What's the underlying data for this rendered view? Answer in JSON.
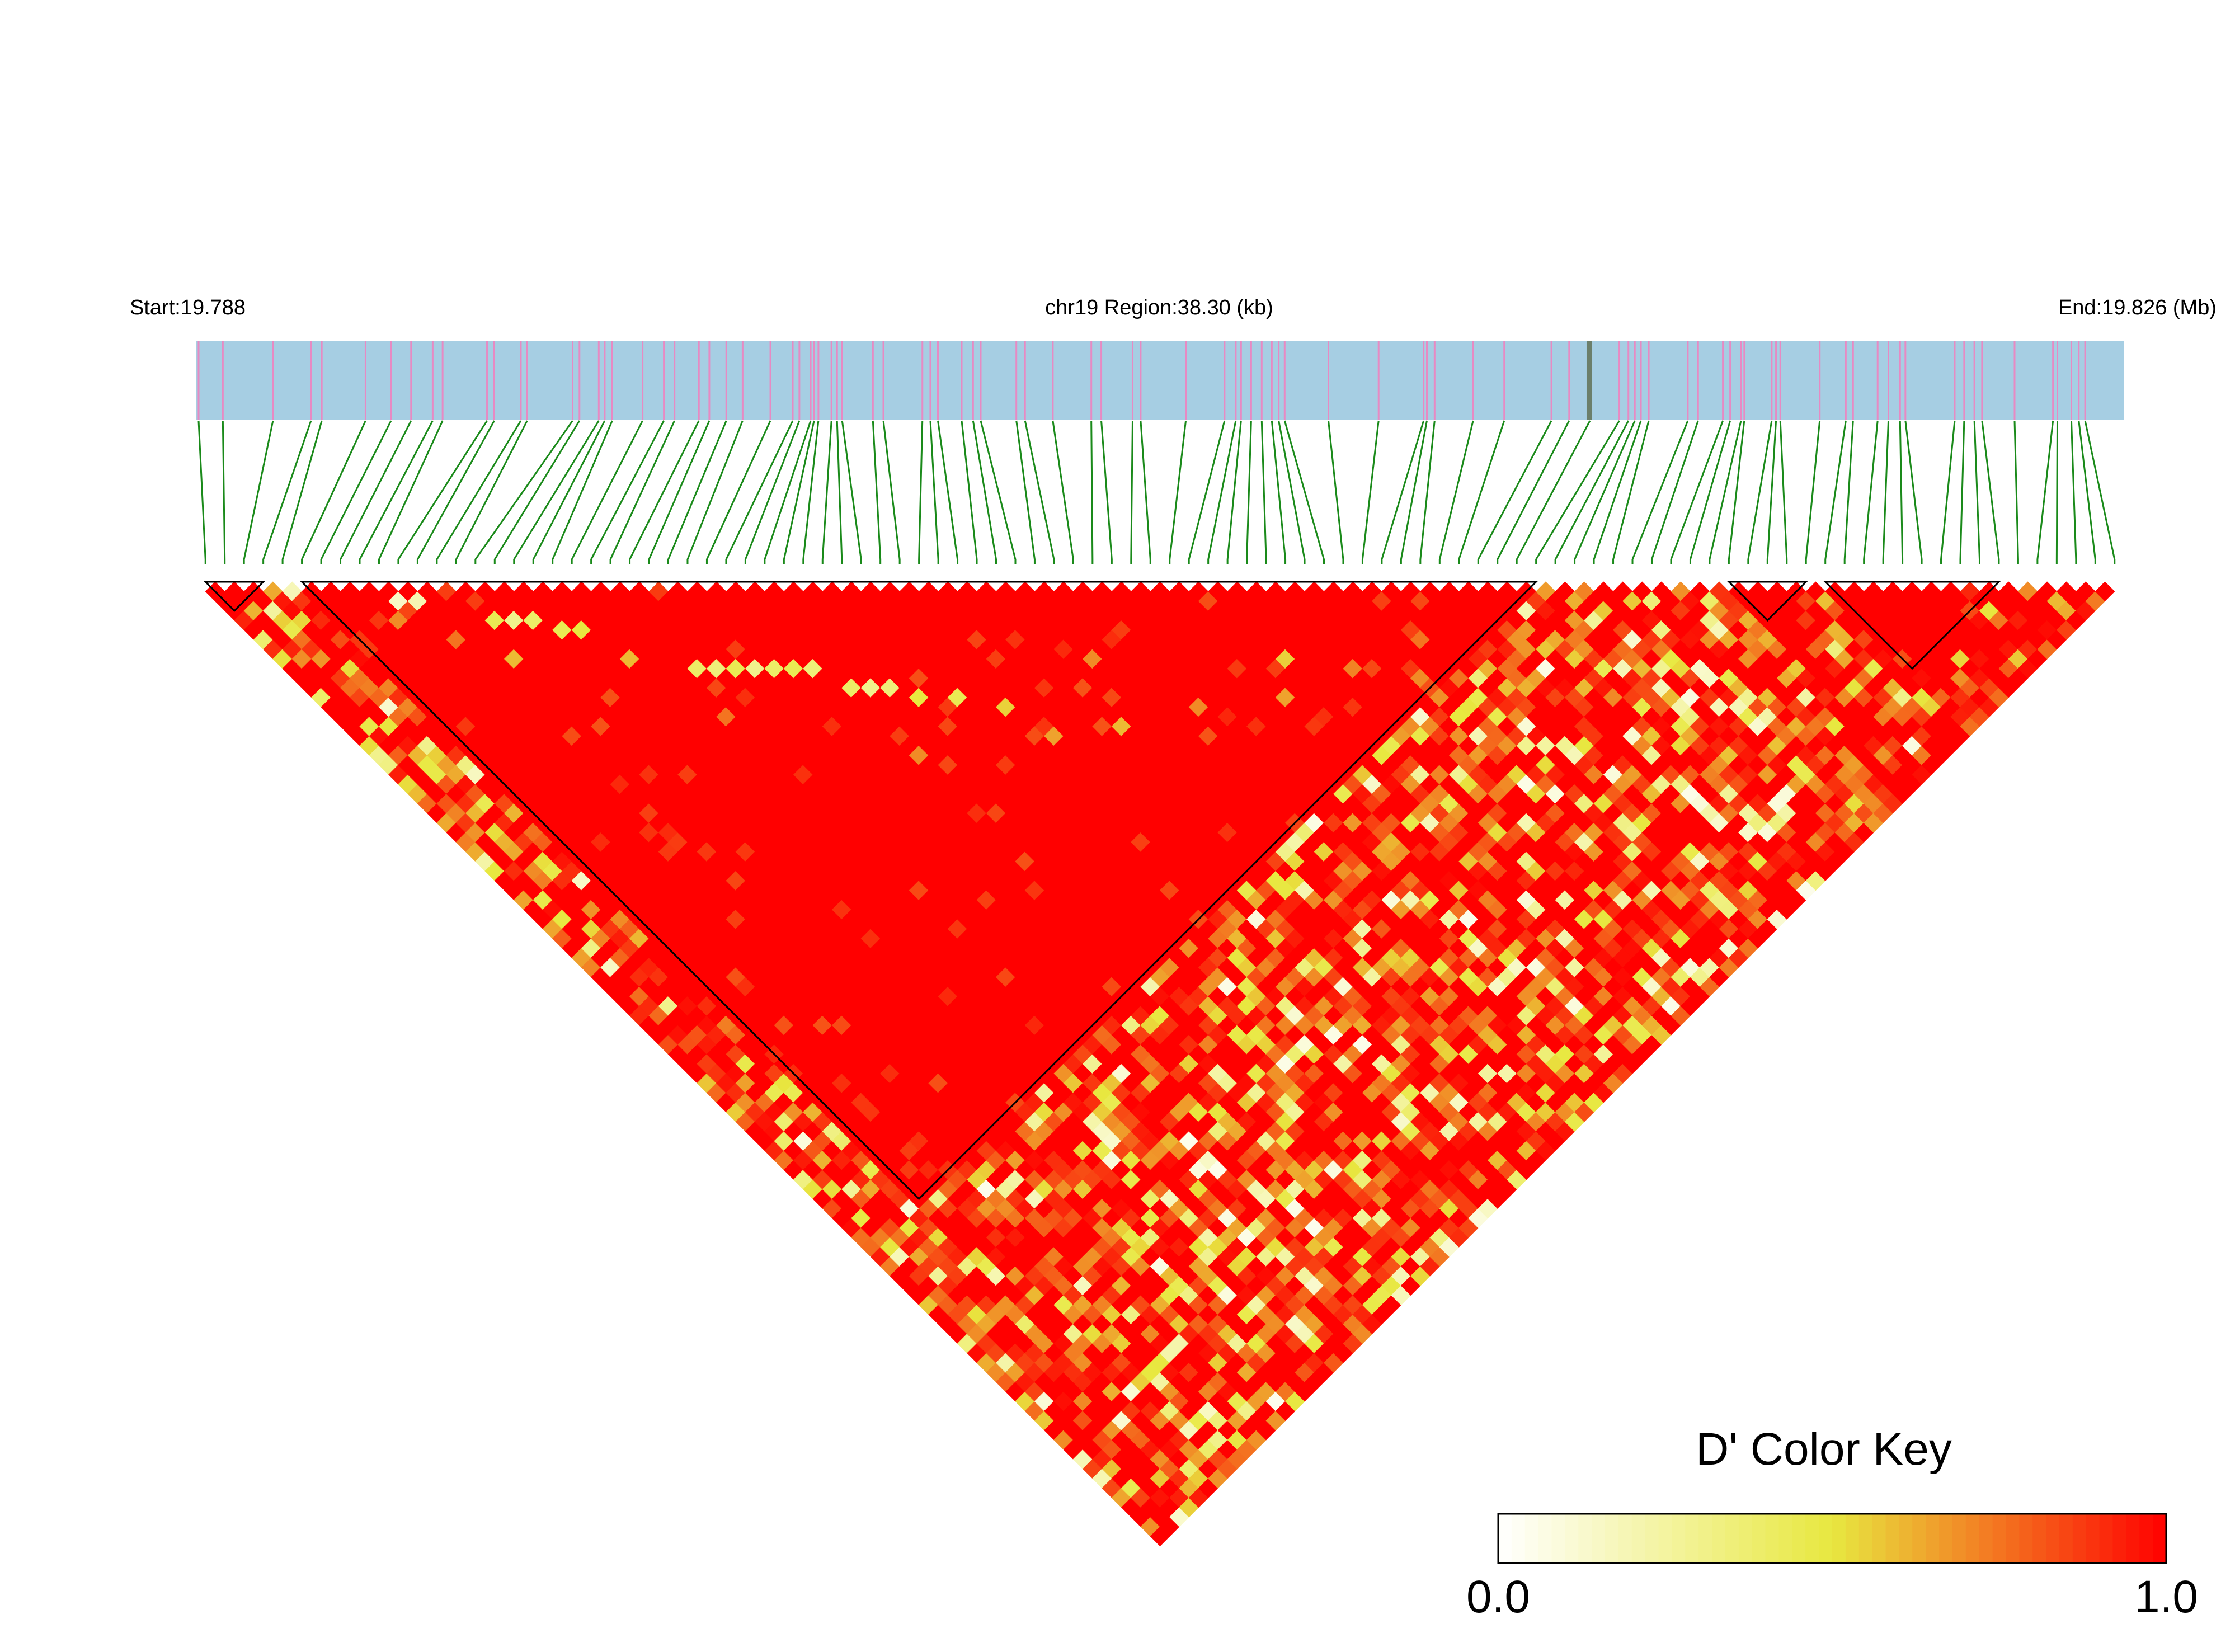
{
  "chart_data": {
    "type": "heatmap",
    "subtype": "LD triangle heatmap",
    "region_start_label": "Start:19.788",
    "region_center_label": "chr19 Region:38.30 (kb)",
    "region_end_label": "End:19.826 (Mb)",
    "region": {
      "chromosome": "chr19",
      "start_mb": 19.788,
      "end_mb": 19.826,
      "length_kb": 38.3
    },
    "snp_count": 100,
    "measure": "D'",
    "color_key": {
      "title": "D' Color Key",
      "min_label": "0.0",
      "max_label": "1.0",
      "range": [
        0.0,
        1.0
      ],
      "low_color": "#ffffff",
      "mid_color": "#e8e840",
      "high_color": "#ff0000"
    },
    "colors": {
      "track_fill": "#a6cee3",
      "snp_tick": "#e78ac3",
      "snp_connector": "#1a8a1a",
      "block_outline": "#000000"
    },
    "haplotype_blocks": [
      {
        "snp_start": 1,
        "snp_end": 4
      },
      {
        "snp_start": 6,
        "snp_end": 70
      },
      {
        "snp_start": 80,
        "snp_end": 84
      },
      {
        "snp_start": 85,
        "snp_end": 94
      }
    ],
    "low_ld_pairs": [
      {
        "i": 9,
        "j": 11,
        "d": 0.15
      },
      {
        "i": 10,
        "j": 12,
        "d": 0.2
      },
      {
        "i": 13,
        "j": 17,
        "d": 0.45
      },
      {
        "i": 14,
        "j": 18,
        "d": 0.3
      },
      {
        "i": 15,
        "j": 19,
        "d": 0.4
      },
      {
        "i": 16,
        "j": 21,
        "d": 0.45
      },
      {
        "i": 17,
        "j": 22,
        "d": 0.5
      },
      {
        "i": 21,
        "j": 30,
        "d": 0.4
      },
      {
        "i": 22,
        "j": 31,
        "d": 0.35
      },
      {
        "i": 23,
        "j": 32,
        "d": 0.45
      },
      {
        "i": 24,
        "j": 33,
        "d": 0.3
      },
      {
        "i": 25,
        "j": 34,
        "d": 0.4
      },
      {
        "i": 26,
        "j": 35,
        "d": 0.45
      },
      {
        "i": 27,
        "j": 36,
        "d": 0.35
      },
      {
        "i": 28,
        "j": 39,
        "d": 0.4
      },
      {
        "i": 29,
        "j": 40,
        "d": 0.3
      },
      {
        "i": 30,
        "j": 41,
        "d": 0.35
      },
      {
        "i": 31,
        "j": 43,
        "d": 0.5
      },
      {
        "i": 33,
        "j": 45,
        "d": 0.45
      },
      {
        "i": 35,
        "j": 48,
        "d": 0.55
      },
      {
        "i": 12,
        "j": 20,
        "d": 0.6
      },
      {
        "i": 18,
        "j": 26,
        "d": 0.6
      },
      {
        "i": 40,
        "j": 55,
        "d": 0.6
      },
      {
        "i": 50,
        "j": 62,
        "d": 0.65
      },
      {
        "i": 45,
        "j": 58,
        "d": 0.7
      },
      {
        "i": 52,
        "j": 60,
        "d": 0.55
      },
      {
        "i": 58,
        "j": 68,
        "d": 0.7
      },
      {
        "i": 36,
        "j": 52,
        "d": 0.65
      },
      {
        "i": 60,
        "j": 66,
        "d": 0.75
      },
      {
        "i": 42,
        "j": 50,
        "d": 0.7
      },
      {
        "i": 28,
        "j": 46,
        "d": 0.7
      },
      {
        "i": 20,
        "j": 34,
        "d": 0.75
      },
      {
        "i": 55,
        "j": 64,
        "d": 0.72
      },
      {
        "i": 8,
        "j": 12,
        "d": 0.7
      },
      {
        "i": 10,
        "j": 16,
        "d": 0.75
      }
    ]
  }
}
